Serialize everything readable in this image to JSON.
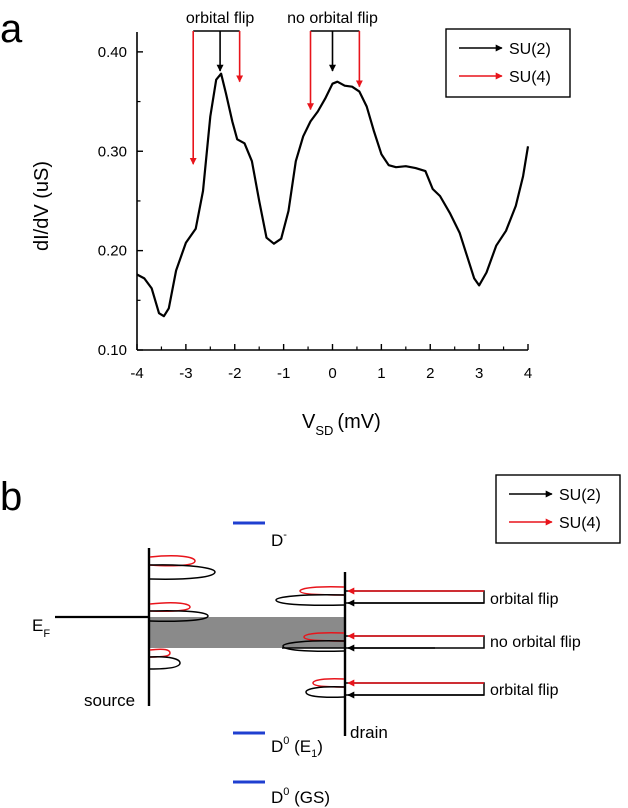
{
  "panel_a_label": "a",
  "panel_b_label": "b",
  "chart_data": {
    "type": "line",
    "title": "",
    "xlabel_main": "V",
    "xlabel_sub": "SD",
    "xlabel_unit": "(mV)",
    "ylabel": "dI/dV (uS)",
    "xlim": [
      -4,
      4
    ],
    "ylim": [
      0.1,
      0.42
    ],
    "xticks": [
      -4,
      -3,
      -2,
      -1,
      0,
      1,
      2,
      3,
      4
    ],
    "xtick_labels": [
      "-4",
      "-3",
      "-2",
      "-1",
      "0",
      "1",
      "2",
      "3",
      "4"
    ],
    "yticks": [
      0.1,
      0.2,
      0.3,
      0.4
    ],
    "ytick_labels": [
      "0.10",
      "0.20",
      "0.30",
      "0.40"
    ],
    "series": [
      {
        "name": "dI/dV",
        "color": "#000000",
        "x": [
          -4.0,
          -3.85,
          -3.7,
          -3.55,
          -3.45,
          -3.35,
          -3.2,
          -3.0,
          -2.8,
          -2.65,
          -2.5,
          -2.38,
          -2.28,
          -2.18,
          -2.05,
          -1.95,
          -1.8,
          -1.65,
          -1.5,
          -1.35,
          -1.2,
          -1.05,
          -0.9,
          -0.75,
          -0.6,
          -0.45,
          -0.3,
          -0.15,
          0.0,
          0.1,
          0.25,
          0.4,
          0.55,
          0.7,
          0.85,
          1.0,
          1.15,
          1.3,
          1.5,
          1.7,
          1.9,
          2.05,
          2.2,
          2.4,
          2.6,
          2.75,
          2.9,
          3.0,
          3.15,
          3.35,
          3.55,
          3.75,
          3.9,
          4.0
        ],
        "y": [
          0.176,
          0.172,
          0.162,
          0.137,
          0.134,
          0.142,
          0.18,
          0.208,
          0.222,
          0.26,
          0.335,
          0.372,
          0.378,
          0.358,
          0.33,
          0.312,
          0.308,
          0.29,
          0.25,
          0.213,
          0.207,
          0.212,
          0.24,
          0.29,
          0.315,
          0.33,
          0.34,
          0.353,
          0.368,
          0.37,
          0.366,
          0.365,
          0.36,
          0.345,
          0.32,
          0.297,
          0.286,
          0.284,
          0.285,
          0.283,
          0.28,
          0.262,
          0.255,
          0.238,
          0.218,
          0.195,
          0.172,
          0.165,
          0.178,
          0.205,
          0.22,
          0.245,
          0.275,
          0.305
        ]
      }
    ],
    "annotations": [
      {
        "text": "orbital flip",
        "black_arrow_x": -2.3,
        "red_arrow_x": [
          -2.85,
          -1.9
        ],
        "red_arrow_y": [
          0.285,
          0.37
        ]
      },
      {
        "text": "no orbital flip",
        "black_arrow_x": 0.0,
        "red_arrow_x": [
          -0.45,
          0.55
        ],
        "red_arrow_y": [
          0.34,
          0.365
        ]
      }
    ],
    "legend": {
      "placement": "top-right",
      "entries": [
        {
          "label": "SU(2)",
          "color": "#000000"
        },
        {
          "label": "SU(4)",
          "color": "#e8141b"
        }
      ]
    }
  },
  "diagram": {
    "legend": [
      {
        "label": "SU(2)",
        "color": "#000000"
      },
      {
        "label": "SU(4)",
        "color": "#e8141b"
      }
    ],
    "fermi_label_main": "E",
    "fermi_label_sub": "F",
    "source_label": "source",
    "drain_label": "drain",
    "level_color": "#1f3fd0",
    "level_d_minus": {
      "main": "D",
      "sup": "-"
    },
    "level_d0_e1": {
      "main": "D",
      "sup": "0",
      "paren_open": " (E",
      "sub": "1",
      "paren_close": ")"
    },
    "level_d0_gs": {
      "main": "D",
      "sup": "0",
      "rest": " (GS)"
    },
    "transition_labels": [
      "orbital flip",
      "no orbital flip",
      "orbital flip"
    ]
  }
}
